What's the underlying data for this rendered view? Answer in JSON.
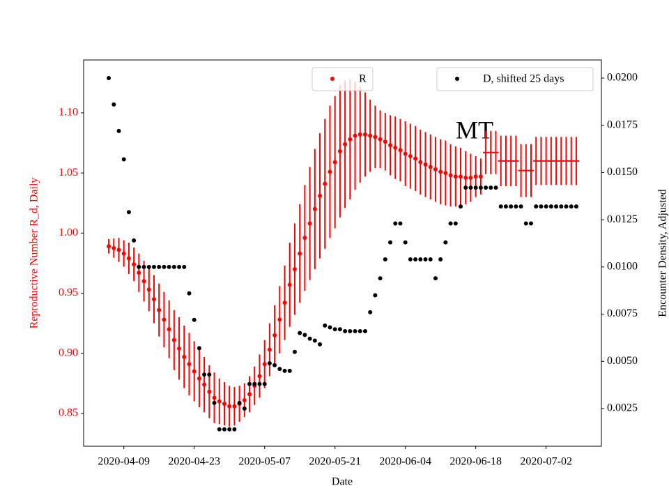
{
  "chart_data": {
    "type": "scatter",
    "annotation": "MT",
    "xlabel": "Date",
    "ylabel": "Reproductive Number R_d, Daily",
    "y2label": "Encounter Density, Adjusted",
    "x": [
      "2020-04-06",
      "2020-04-07",
      "2020-04-08",
      "2020-04-09",
      "2020-04-10",
      "2020-04-11",
      "2020-04-12",
      "2020-04-13",
      "2020-04-14",
      "2020-04-15",
      "2020-04-16",
      "2020-04-17",
      "2020-04-18",
      "2020-04-19",
      "2020-04-20",
      "2020-04-21",
      "2020-04-22",
      "2020-04-23",
      "2020-04-24",
      "2020-04-25",
      "2020-04-26",
      "2020-04-27",
      "2020-04-28",
      "2020-04-29",
      "2020-04-30",
      "2020-05-01",
      "2020-05-02",
      "2020-05-03",
      "2020-05-04",
      "2020-05-05",
      "2020-05-06",
      "2020-05-07",
      "2020-05-08",
      "2020-05-09",
      "2020-05-10",
      "2020-05-11",
      "2020-05-12",
      "2020-05-13",
      "2020-05-14",
      "2020-05-15",
      "2020-05-16",
      "2020-05-17",
      "2020-05-18",
      "2020-05-19",
      "2020-05-20",
      "2020-05-21",
      "2020-05-22",
      "2020-05-23",
      "2020-05-24",
      "2020-05-25",
      "2020-05-26",
      "2020-05-27",
      "2020-05-28",
      "2020-05-29",
      "2020-05-30",
      "2020-05-31",
      "2020-06-01",
      "2020-06-02",
      "2020-06-03",
      "2020-06-04",
      "2020-06-05",
      "2020-06-06",
      "2020-06-07",
      "2020-06-08",
      "2020-06-09",
      "2020-06-10",
      "2020-06-11",
      "2020-06-12",
      "2020-06-13",
      "2020-06-14",
      "2020-06-15",
      "2020-06-16",
      "2020-06-17",
      "2020-06-18",
      "2020-06-19",
      "2020-06-20",
      "2020-06-21",
      "2020-06-22",
      "2020-06-23",
      "2020-06-24",
      "2020-06-25",
      "2020-06-26",
      "2020-06-27",
      "2020-06-28",
      "2020-06-29",
      "2020-06-30",
      "2020-07-01",
      "2020-07-02",
      "2020-07-03",
      "2020-07-04",
      "2020-07-05",
      "2020-07-06",
      "2020-07-07",
      "2020-07-08"
    ],
    "series": [
      {
        "name": "R",
        "color": "#ff0000",
        "marker": "circle",
        "legend": "upper center",
        "values": [
          0.989,
          0.9875,
          0.986,
          0.983,
          0.979,
          0.974,
          0.967,
          0.96,
          0.953,
          0.945,
          0.936,
          0.928,
          0.92,
          0.911,
          0.904,
          0.897,
          0.891,
          0.885,
          0.879,
          0.874,
          0.868,
          0.863,
          0.86,
          0.858,
          0.856,
          0.856,
          0.858,
          0.861,
          0.866,
          0.873,
          0.881,
          0.891,
          0.903,
          0.915,
          0.928,
          0.942,
          0.957,
          0.97,
          0.983,
          0.996,
          1.008,
          1.02,
          1.031,
          1.041,
          1.051,
          1.059,
          1.068,
          1.074,
          1.078,
          1.081,
          1.082,
          1.082,
          1.081,
          1.08,
          1.078,
          1.076,
          1.073,
          1.071,
          1.069,
          1.066,
          1.064,
          1.062,
          1.059,
          1.057,
          1.055,
          1.053,
          1.051,
          1.05,
          1.048,
          1.047,
          1.047,
          1.046,
          1.046,
          1.047,
          1.047,
          null,
          null,
          null,
          null,
          null,
          null,
          null,
          null,
          null,
          null,
          null,
          null,
          null,
          null,
          null,
          null,
          null,
          null,
          null
        ],
        "errors": [
          0.006,
          0.008,
          0.01,
          0.011,
          0.013,
          0.014,
          0.016,
          0.017,
          0.018,
          0.02,
          0.022,
          0.023,
          0.024,
          0.025,
          0.026,
          0.026,
          0.026,
          0.025,
          0.024,
          0.023,
          0.022,
          0.021,
          0.019,
          0.018,
          0.017,
          0.016,
          0.015,
          0.014,
          0.015,
          0.016,
          0.018,
          0.02,
          0.022,
          0.025,
          0.028,
          0.031,
          0.035,
          0.038,
          0.041,
          0.044,
          0.047,
          0.05,
          0.052,
          0.054,
          0.055,
          0.055,
          0.055,
          0.053,
          0.05,
          0.045,
          0.04,
          0.035,
          0.03,
          0.026,
          0.024,
          0.024,
          0.025,
          0.026,
          0.026,
          0.027,
          0.027,
          0.027,
          0.027,
          0.027,
          0.027,
          0.027,
          0.027,
          0.027,
          0.026,
          0.025,
          0.024,
          0.022,
          0.02,
          0.017,
          0.015,
          null,
          null,
          null,
          null,
          null,
          null,
          null,
          null,
          null,
          null,
          null,
          null,
          null,
          null,
          null,
          null,
          null,
          null,
          null
        ]
      },
      {
        "color": "#ff0000",
        "marker": "hline",
        "values": [
          null,
          null,
          null,
          null,
          null,
          null,
          null,
          null,
          null,
          null,
          null,
          null,
          null,
          null,
          null,
          null,
          null,
          null,
          null,
          null,
          null,
          null,
          null,
          null,
          null,
          null,
          null,
          null,
          null,
          null,
          null,
          null,
          null,
          null,
          null,
          null,
          null,
          null,
          null,
          null,
          null,
          null,
          null,
          null,
          null,
          null,
          null,
          null,
          null,
          null,
          null,
          null,
          null,
          null,
          null,
          null,
          null,
          null,
          null,
          null,
          null,
          null,
          null,
          null,
          null,
          null,
          null,
          null,
          null,
          null,
          null,
          null,
          null,
          null,
          null,
          1.067,
          1.067,
          1.067,
          1.06,
          1.06,
          1.06,
          1.06,
          1.052,
          1.052,
          1.052,
          1.06,
          1.06,
          1.06,
          1.06,
          1.06,
          1.06,
          1.06,
          1.06,
          1.06
        ],
        "errors": [
          null,
          null,
          null,
          null,
          null,
          null,
          null,
          null,
          null,
          null,
          null,
          null,
          null,
          null,
          null,
          null,
          null,
          null,
          null,
          null,
          null,
          null,
          null,
          null,
          null,
          null,
          null,
          null,
          null,
          null,
          null,
          null,
          null,
          null,
          null,
          null,
          null,
          null,
          null,
          null,
          null,
          null,
          null,
          null,
          null,
          null,
          null,
          null,
          null,
          null,
          null,
          null,
          null,
          null,
          null,
          null,
          null,
          null,
          null,
          null,
          null,
          null,
          null,
          null,
          null,
          null,
          null,
          null,
          null,
          null,
          null,
          null,
          null,
          null,
          null,
          0.018,
          0.018,
          0.018,
          0.021,
          0.021,
          0.021,
          0.021,
          0.022,
          0.022,
          0.022,
          0.02,
          0.02,
          0.02,
          0.02,
          0.02,
          0.02,
          0.02,
          0.02,
          0.02
        ]
      },
      {
        "name": "D, shifted 25 days",
        "color": "#000000",
        "marker": "circle",
        "axis": "y2",
        "legend": "upper right",
        "values": [
          0.02,
          0.0186,
          0.0172,
          0.0157,
          0.0129,
          0.0114,
          0.01,
          0.01,
          0.01,
          0.01,
          0.01,
          0.01,
          0.01,
          0.01,
          0.01,
          0.01,
          0.0086,
          0.0072,
          0.0057,
          0.0043,
          0.0043,
          0.0028,
          0.0014,
          0.0014,
          0.0014,
          0.0014,
          0.0028,
          0.0025,
          0.0038,
          0.0038,
          0.0038,
          0.0038,
          0.0049,
          0.0048,
          0.0046,
          0.0045,
          0.0045,
          0.0055,
          0.0065,
          0.0064,
          0.0062,
          0.0061,
          0.0059,
          0.0069,
          0.0068,
          0.0067,
          0.0067,
          0.0066,
          0.0066,
          0.0066,
          0.0066,
          0.0066,
          0.0076,
          0.0085,
          0.0094,
          0.0104,
          0.0113,
          0.0123,
          0.0123,
          0.0113,
          0.0104,
          0.0104,
          0.0104,
          0.0104,
          0.0104,
          0.0094,
          0.0104,
          0.0113,
          0.0123,
          0.0123,
          0.0132,
          0.0142,
          0.0142,
          0.0142,
          0.0142,
          0.0142,
          0.0142,
          0.0142,
          0.0132,
          0.0132,
          0.0132,
          0.0132,
          0.0132,
          0.0123,
          0.0123,
          0.0132,
          0.0132,
          0.0132,
          0.0132,
          0.0132,
          0.0132,
          0.0132,
          0.0132,
          0.0132
        ]
      }
    ],
    "xlim": [
      "2020-04-01",
      "2020-07-13"
    ],
    "xticks": [
      "2020-04-09",
      "2020-04-23",
      "2020-05-07",
      "2020-05-21",
      "2020-06-04",
      "2020-06-18",
      "2020-07-02"
    ],
    "ylim": [
      0.8227,
      1.144
    ],
    "yticks": [
      0.85,
      {
        "value": 0.9,
        "label": "0.90"
      },
      0.95,
      {
        "value": 1,
        "label": "1.00"
      },
      1.05,
      {
        "value": 1.1,
        "label": "1.10"
      }
    ],
    "y2lim": [
      0.000506,
      0.02096
    ],
    "y2ticks": [
      0.0025,
      {
        "value": 0.005,
        "label": "0.0050"
      },
      0.0075,
      {
        "value": 0.01,
        "label": "0.0100"
      },
      0.0125,
      {
        "value": 0.015,
        "label": "0.0150"
      },
      0.0175,
      {
        "value": 0.02,
        "label": "0.0200"
      }
    ],
    "ytick_color": "#ff0000",
    "grid": false
  }
}
